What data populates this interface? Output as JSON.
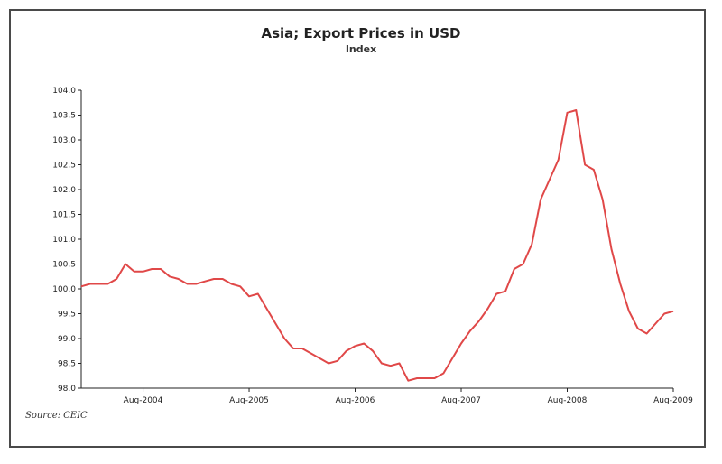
{
  "chart_data": {
    "type": "line",
    "title": "Asia; Export Prices in USD",
    "subtitle": "Index",
    "source": "Source: CEIC",
    "ylim": [
      98.0,
      104.0
    ],
    "y_ticks": [
      "104.0",
      "103.5",
      "103.0",
      "102.5",
      "102.0",
      "101.5",
      "101.0",
      "100.5",
      "100.0",
      "99.5",
      "99.0",
      "98.5",
      "98.0"
    ],
    "x_tick_labels": [
      "Aug-2004",
      "Aug-2005",
      "Aug-2006",
      "Aug-2007",
      "Aug-2008",
      "Aug-2009"
    ],
    "x_tick_months": [
      7,
      19,
      31,
      43,
      55,
      67
    ],
    "xlim_months": [
      0,
      67
    ],
    "grid": false,
    "line_color": "#e04848",
    "series": [
      {
        "month_index": [
          0,
          1,
          2,
          3,
          4,
          5,
          6,
          7,
          8,
          9,
          10,
          11,
          12,
          13,
          14,
          15,
          16,
          17,
          18,
          19,
          20,
          21,
          22,
          23,
          24,
          25,
          26,
          27,
          28,
          29,
          30,
          31,
          32,
          33,
          34,
          35,
          36,
          37,
          38,
          39,
          40,
          41,
          42,
          43,
          44,
          45,
          46,
          47,
          48,
          49,
          50,
          51,
          52,
          53,
          54,
          55,
          56,
          57,
          58,
          59,
          60,
          61,
          62,
          63,
          64,
          65,
          66,
          67
        ],
        "values": [
          100.05,
          100.1,
          100.1,
          100.1,
          100.2,
          100.5,
          100.35,
          100.35,
          100.4,
          100.4,
          100.25,
          100.2,
          100.1,
          100.1,
          100.15,
          100.2,
          100.2,
          100.1,
          100.05,
          99.85,
          99.9,
          99.6,
          99.3,
          99.0,
          98.8,
          98.8,
          98.7,
          98.6,
          98.5,
          98.55,
          98.75,
          98.85,
          98.9,
          98.75,
          98.5,
          98.45,
          98.5,
          98.15,
          98.2,
          98.2,
          98.2,
          98.3,
          98.6,
          98.9,
          99.15,
          99.35,
          99.6,
          99.9,
          99.95,
          100.4,
          100.5,
          100.9,
          101.8,
          102.2,
          102.6,
          103.55,
          103.6,
          102.5,
          102.4,
          101.8,
          100.8,
          100.1,
          99.55,
          99.2,
          99.1,
          99.3,
          99.5,
          99.55
        ]
      }
    ]
  }
}
